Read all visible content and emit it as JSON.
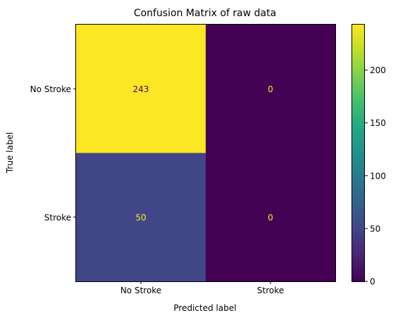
{
  "chart_data": {
    "type": "heatmap",
    "title": "Confusion Matrix of raw data",
    "xlabel": "Predicted label",
    "ylabel": "True label",
    "x_categories": [
      "No Stroke",
      "Stroke"
    ],
    "y_categories": [
      "No Stroke",
      "Stroke"
    ],
    "values": [
      [
        243,
        0
      ],
      [
        50,
        0
      ]
    ],
    "value_labels": [
      [
        "243",
        "0"
      ],
      [
        "50",
        "0"
      ]
    ],
    "colormap": "viridis",
    "colorbar": {
      "range": [
        0,
        243
      ],
      "ticks": [
        0,
        50,
        100,
        150,
        200
      ],
      "tick_labels": [
        "0",
        "50",
        "100",
        "150",
        "200"
      ]
    },
    "colors": {
      "max_cell": "#fde725",
      "mid_cell": "#3e4c8a",
      "min_cell": "#440154",
      "label_on_dark": "#fde725",
      "label_on_light": "#440154"
    }
  }
}
